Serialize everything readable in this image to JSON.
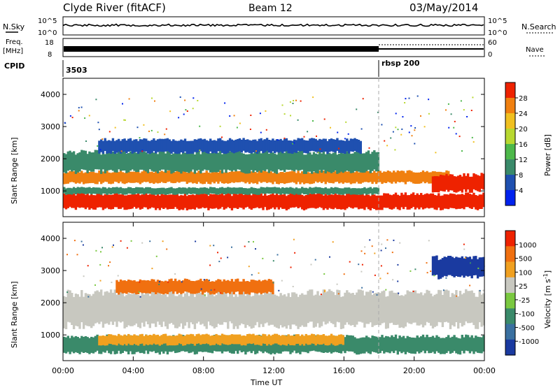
{
  "header": {
    "station": "Clyde River (fitACF)",
    "beam": "Beam 12",
    "date": "03/May/2014"
  },
  "strips": {
    "nsky_label": "N.Sky",
    "nsearch_label": "N.Search",
    "noise_left_ticks": [
      "10^5",
      "10^0"
    ],
    "noise_right_ticks": [
      "10^5",
      "10^0"
    ],
    "freq_label_1": "Freq.",
    "freq_label_2": "[MHz]",
    "freq_ticks": [
      "18",
      "8"
    ],
    "nave_label": "Nave",
    "nave_ticks": [
      "60",
      "0"
    ],
    "cpid_label": "CPID",
    "cpid_segments": [
      {
        "name": "3503",
        "start_hour": 0
      },
      {
        "name": "rbsp 200",
        "start_hour": 18
      }
    ]
  },
  "chart_data": [
    {
      "type": "heatmap",
      "name": "power",
      "xlabel": "",
      "ylabel": "Slant Range [km]",
      "xlim": [
        0,
        24
      ],
      "ylim": [
        200,
        4500
      ],
      "yticks": [
        "1000",
        "2000",
        "3000",
        "4000"
      ],
      "colorbar_label": "Power [dB]",
      "colorbar_ticks": [
        "28",
        "24",
        "20",
        "16",
        "12",
        "8",
        "4"
      ],
      "colorbar_colors": [
        "#0022ee",
        "#1f50b0",
        "#3a8a6a",
        "#4db84a",
        "#b8d830",
        "#f0c020",
        "#f08010",
        "#ee2200"
      ],
      "bands": [
        {
          "t0": 0,
          "t1": 24,
          "r0": 450,
          "r1": 900,
          "color": "#ee2200"
        },
        {
          "t0": 0,
          "t1": 18,
          "r0": 900,
          "r1": 1100,
          "color": "#3a8a6a"
        },
        {
          "t0": 0,
          "t1": 22,
          "r0": 1250,
          "r1": 1600,
          "color": "#f08010"
        },
        {
          "t0": 0,
          "t1": 18,
          "r0": 1600,
          "r1": 2200,
          "color": "#3a8a6a"
        },
        {
          "t0": 2,
          "t1": 17,
          "r0": 2200,
          "r1": 2600,
          "color": "#1f50b0"
        },
        {
          "t0": 21,
          "t1": 24,
          "r0": 1000,
          "r1": 1500,
          "color": "#ee2200"
        }
      ]
    },
    {
      "type": "heatmap",
      "name": "velocity",
      "xlabel": "Time UT",
      "ylabel": "Slant Range [km]",
      "xlim": [
        0,
        24
      ],
      "ylim": [
        200,
        4500
      ],
      "yticks": [
        "1000",
        "2000",
        "3000",
        "4000"
      ],
      "xticks": [
        "00:00",
        "04:00",
        "08:00",
        "12:00",
        "16:00",
        "20:00",
        "00:00"
      ],
      "colorbar_label": "Velocity [m s^-1]",
      "colorbar_ticks": [
        "1000",
        "500",
        "100",
        "25",
        "-25",
        "-100",
        "-500",
        "-1000"
      ],
      "colorbar_colors": [
        "#1a3aa0",
        "#3a70a0",
        "#3a8a6a",
        "#7ac840",
        "#c8c8c0",
        "#f0a020",
        "#f07010",
        "#ee2200"
      ],
      "bands": [
        {
          "t0": 0,
          "t1": 24,
          "r0": 450,
          "r1": 950,
          "color": "#3a8a6a"
        },
        {
          "t0": 2,
          "t1": 16,
          "r0": 700,
          "r1": 1000,
          "color": "#f0a020"
        },
        {
          "t0": 0,
          "t1": 24,
          "r0": 1300,
          "r1": 2300,
          "color": "#c8c8c0"
        },
        {
          "t0": 3,
          "t1": 12,
          "r0": 2300,
          "r1": 2700,
          "color": "#f07010"
        },
        {
          "t0": 21,
          "t1": 24,
          "r0": 2800,
          "r1": 3400,
          "color": "#1a3aa0"
        }
      ]
    }
  ]
}
